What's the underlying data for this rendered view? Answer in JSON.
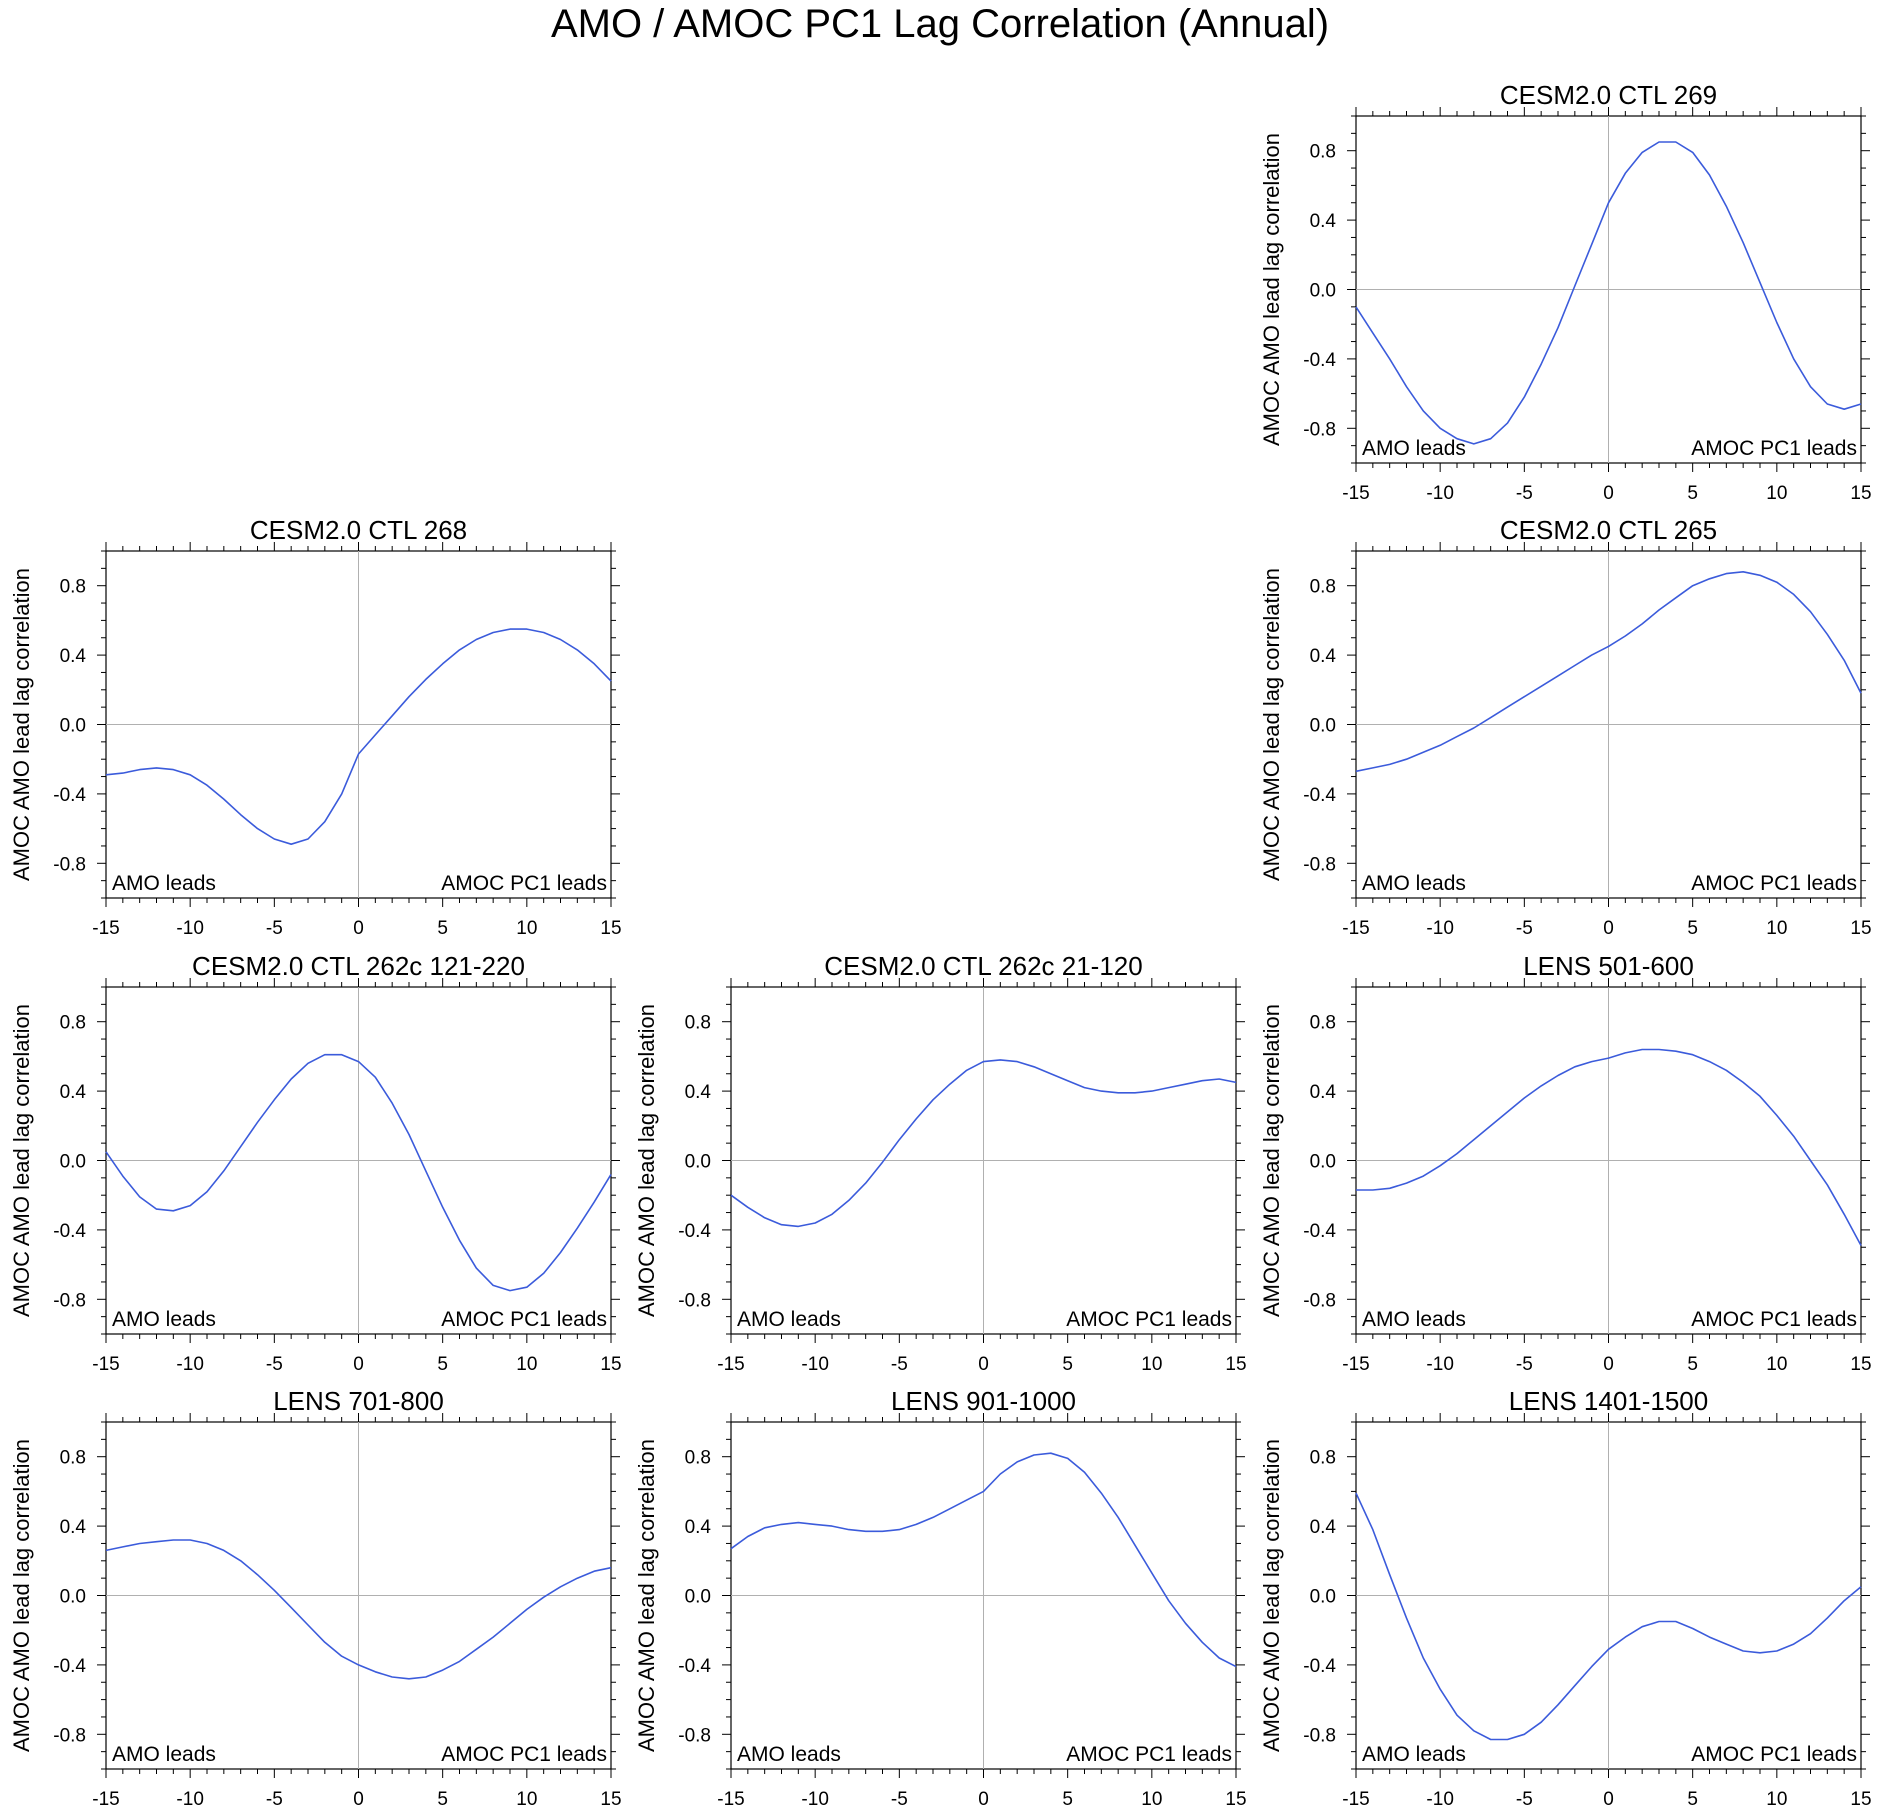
{
  "title": "AMO / AMOC PC1 Lag Correlation (Annual)",
  "colors": {
    "line": "#3b5bdb",
    "zero_line": "#b0b0b0",
    "axis": "#000000"
  },
  "chart_data": [
    {
      "type": "line",
      "title": "CESM2.0 CTL 269",
      "ylabel": "AMOC AMO lead lag correlation",
      "left_annotation": "AMO leads",
      "right_annotation": "AMOC PC1 leads",
      "xlim": [
        -15,
        15
      ],
      "ylim": [
        -1,
        1
      ],
      "xticks": [
        -15,
        -10,
        -5,
        0,
        5,
        10,
        15
      ],
      "xtick_labels": [
        "-15",
        "-10",
        "-5",
        "0",
        "5",
        "10",
        "15"
      ],
      "yticks": [
        -0.8,
        -0.4,
        0.0,
        0.4,
        0.8
      ],
      "ytick_labels": [
        "-0.8",
        "-0.4",
        "0.0",
        "0.4",
        "0.8"
      ],
      "x": [
        -15,
        -14,
        -13,
        -12,
        -11,
        -10,
        -9,
        -8,
        -7,
        -6,
        -5,
        -4,
        -3,
        -2,
        -1,
        0,
        1,
        2,
        3,
        4,
        5,
        6,
        7,
        8,
        9,
        10,
        11,
        12,
        13,
        14,
        15
      ],
      "y": [
        -0.1,
        -0.25,
        -0.4,
        -0.56,
        -0.7,
        -0.8,
        -0.86,
        -0.89,
        -0.86,
        -0.77,
        -0.62,
        -0.43,
        -0.22,
        0.02,
        0.26,
        0.5,
        0.67,
        0.79,
        0.85,
        0.85,
        0.79,
        0.66,
        0.48,
        0.27,
        0.04,
        -0.19,
        -0.4,
        -0.56,
        -0.66,
        -0.69,
        -0.66
      ]
    },
    {
      "type": "line",
      "title": "CESM2.0 CTL 268",
      "ylabel": "AMOC AMO lead lag correlation",
      "left_annotation": "AMO leads",
      "right_annotation": "AMOC PC1 leads",
      "xlim": [
        -15,
        15
      ],
      "ylim": [
        -1,
        1
      ],
      "xticks": [
        -15,
        -10,
        -5,
        0,
        5,
        10,
        15
      ],
      "xtick_labels": [
        "-15",
        "-10",
        "-5",
        "0",
        "5",
        "10",
        "15"
      ],
      "yticks": [
        -0.8,
        -0.4,
        0.0,
        0.4,
        0.8
      ],
      "ytick_labels": [
        "-0.8",
        "-0.4",
        "0.0",
        "0.4",
        "0.8"
      ],
      "x": [
        -15,
        -14,
        -13,
        -12,
        -11,
        -10,
        -9,
        -8,
        -7,
        -6,
        -5,
        -4,
        -3,
        -2,
        -1,
        0,
        1,
        2,
        3,
        4,
        5,
        6,
        7,
        8,
        9,
        10,
        11,
        12,
        13,
        14,
        15
      ],
      "y": [
        -0.29,
        -0.28,
        -0.26,
        -0.25,
        -0.26,
        -0.29,
        -0.35,
        -0.43,
        -0.52,
        -0.6,
        -0.66,
        -0.69,
        -0.66,
        -0.56,
        -0.4,
        -0.17,
        -0.06,
        0.05,
        0.16,
        0.26,
        0.35,
        0.43,
        0.49,
        0.53,
        0.55,
        0.55,
        0.53,
        0.49,
        0.43,
        0.35,
        0.25
      ]
    },
    {
      "type": "line",
      "title": "CESM2.0 CTL 265",
      "ylabel": "AMOC AMO lead lag correlation",
      "left_annotation": "AMO leads",
      "right_annotation": "AMOC PC1 leads",
      "xlim": [
        -15,
        15
      ],
      "ylim": [
        -1,
        1
      ],
      "xticks": [
        -15,
        -10,
        -5,
        0,
        5,
        10,
        15
      ],
      "xtick_labels": [
        "-15",
        "-10",
        "-5",
        "0",
        "5",
        "10",
        "15"
      ],
      "yticks": [
        -0.8,
        -0.4,
        0.0,
        0.4,
        0.8
      ],
      "ytick_labels": [
        "-0.8",
        "-0.4",
        "0.0",
        "0.4",
        "0.8"
      ],
      "x": [
        -15,
        -14,
        -13,
        -12,
        -11,
        -10,
        -9,
        -8,
        -7,
        -6,
        -5,
        -4,
        -3,
        -2,
        -1,
        0,
        1,
        2,
        3,
        4,
        5,
        6,
        7,
        8,
        9,
        10,
        11,
        12,
        13,
        14,
        15
      ],
      "y": [
        -0.27,
        -0.25,
        -0.23,
        -0.2,
        -0.16,
        -0.12,
        -0.07,
        -0.02,
        0.04,
        0.1,
        0.16,
        0.22,
        0.28,
        0.34,
        0.4,
        0.45,
        0.51,
        0.58,
        0.66,
        0.73,
        0.8,
        0.84,
        0.87,
        0.88,
        0.86,
        0.82,
        0.75,
        0.65,
        0.52,
        0.37,
        0.18
      ]
    },
    {
      "type": "line",
      "title": "CESM2.0 CTL 262c 121-220",
      "ylabel": "AMOC AMO lead lag correlation",
      "left_annotation": "AMO leads",
      "right_annotation": "AMOC PC1 leads",
      "xlim": [
        -15,
        15
      ],
      "ylim": [
        -1,
        1
      ],
      "xticks": [
        -15,
        -10,
        -5,
        0,
        5,
        10,
        15
      ],
      "xtick_labels": [
        "-15",
        "-10",
        "-5",
        "0",
        "5",
        "10",
        "15"
      ],
      "yticks": [
        -0.8,
        -0.4,
        0.0,
        0.4,
        0.8
      ],
      "ytick_labels": [
        "-0.8",
        "-0.4",
        "0.0",
        "0.4",
        "0.8"
      ],
      "x": [
        -15,
        -14,
        -13,
        -12,
        -11,
        -10,
        -9,
        -8,
        -7,
        -6,
        -5,
        -4,
        -3,
        -2,
        -1,
        0,
        1,
        2,
        3,
        4,
        5,
        6,
        7,
        8,
        9,
        10,
        11,
        12,
        13,
        14,
        15
      ],
      "y": [
        0.05,
        -0.09,
        -0.21,
        -0.28,
        -0.29,
        -0.26,
        -0.18,
        -0.06,
        0.08,
        0.22,
        0.35,
        0.47,
        0.56,
        0.61,
        0.61,
        0.57,
        0.48,
        0.33,
        0.15,
        -0.06,
        -0.27,
        -0.46,
        -0.62,
        -0.72,
        -0.75,
        -0.73,
        -0.65,
        -0.53,
        -0.39,
        -0.24,
        -0.08
      ]
    },
    {
      "type": "line",
      "title": "CESM2.0 CTL 262c 21-120",
      "ylabel": "AMOC AMO lead lag correlation",
      "left_annotation": "AMO leads",
      "right_annotation": "AMOC PC1 leads",
      "xlim": [
        -15,
        15
      ],
      "ylim": [
        -1,
        1
      ],
      "xticks": [
        -15,
        -10,
        -5,
        0,
        5,
        10,
        15
      ],
      "xtick_labels": [
        "-15",
        "-10",
        "-5",
        "0",
        "5",
        "10",
        "15"
      ],
      "yticks": [
        -0.8,
        -0.4,
        0.0,
        0.4,
        0.8
      ],
      "ytick_labels": [
        "-0.8",
        "-0.4",
        "0.0",
        "0.4",
        "0.8"
      ],
      "x": [
        -15,
        -14,
        -13,
        -12,
        -11,
        -10,
        -9,
        -8,
        -7,
        -6,
        -5,
        -4,
        -3,
        -2,
        -1,
        0,
        1,
        2,
        3,
        4,
        5,
        6,
        7,
        8,
        9,
        10,
        11,
        12,
        13,
        14,
        15
      ],
      "y": [
        -0.2,
        -0.27,
        -0.33,
        -0.37,
        -0.38,
        -0.36,
        -0.31,
        -0.23,
        -0.13,
        -0.01,
        0.12,
        0.24,
        0.35,
        0.44,
        0.52,
        0.57,
        0.58,
        0.57,
        0.54,
        0.5,
        0.46,
        0.42,
        0.4,
        0.39,
        0.39,
        0.4,
        0.42,
        0.44,
        0.46,
        0.47,
        0.45
      ]
    },
    {
      "type": "line",
      "title": "LENS 501-600",
      "ylabel": "AMOC AMO lead lag correlation",
      "left_annotation": "AMO leads",
      "right_annotation": "AMOC PC1 leads",
      "xlim": [
        -15,
        15
      ],
      "ylim": [
        -1,
        1
      ],
      "xticks": [
        -15,
        -10,
        -5,
        0,
        5,
        10,
        15
      ],
      "xtick_labels": [
        "-15",
        "-10",
        "-5",
        "0",
        "5",
        "10",
        "15"
      ],
      "yticks": [
        -0.8,
        -0.4,
        0.0,
        0.4,
        0.8
      ],
      "ytick_labels": [
        "-0.8",
        "-0.4",
        "0.0",
        "0.4",
        "0.8"
      ],
      "x": [
        -15,
        -14,
        -13,
        -12,
        -11,
        -10,
        -9,
        -8,
        -7,
        -6,
        -5,
        -4,
        -3,
        -2,
        -1,
        0,
        1,
        2,
        3,
        4,
        5,
        6,
        7,
        8,
        9,
        10,
        11,
        12,
        13,
        14,
        15
      ],
      "y": [
        -0.17,
        -0.17,
        -0.16,
        -0.13,
        -0.09,
        -0.03,
        0.04,
        0.12,
        0.2,
        0.28,
        0.36,
        0.43,
        0.49,
        0.54,
        0.57,
        0.59,
        0.62,
        0.64,
        0.64,
        0.63,
        0.61,
        0.57,
        0.52,
        0.45,
        0.37,
        0.26,
        0.14,
        0.0,
        -0.14,
        -0.31,
        -0.49
      ]
    },
    {
      "type": "line",
      "title": "LENS 701-800",
      "ylabel": "AMOC AMO lead lag correlation",
      "left_annotation": "AMO leads",
      "right_annotation": "AMOC PC1 leads",
      "xlim": [
        -15,
        15
      ],
      "ylim": [
        -1,
        1
      ],
      "xticks": [
        -15,
        -10,
        -5,
        0,
        5,
        10,
        15
      ],
      "xtick_labels": [
        "-15",
        "-10",
        "-5",
        "0",
        "5",
        "10",
        "15"
      ],
      "yticks": [
        -0.8,
        -0.4,
        0.0,
        0.4,
        0.8
      ],
      "ytick_labels": [
        "-0.8",
        "-0.4",
        "0.0",
        "0.4",
        "0.8"
      ],
      "x": [
        -15,
        -14,
        -13,
        -12,
        -11,
        -10,
        -9,
        -8,
        -7,
        -6,
        -5,
        -4,
        -3,
        -2,
        -1,
        0,
        1,
        2,
        3,
        4,
        5,
        6,
        7,
        8,
        9,
        10,
        11,
        12,
        13,
        14,
        15
      ],
      "y": [
        0.26,
        0.28,
        0.3,
        0.31,
        0.32,
        0.32,
        0.3,
        0.26,
        0.2,
        0.12,
        0.03,
        -0.07,
        -0.17,
        -0.27,
        -0.35,
        -0.4,
        -0.44,
        -0.47,
        -0.48,
        -0.47,
        -0.43,
        -0.38,
        -0.31,
        -0.24,
        -0.16,
        -0.08,
        -0.01,
        0.05,
        0.1,
        0.14,
        0.16
      ]
    },
    {
      "type": "line",
      "title": "LENS 901-1000",
      "ylabel": "AMOC AMO lead lag correlation",
      "left_annotation": "AMO leads",
      "right_annotation": "AMOC PC1 leads",
      "xlim": [
        -15,
        15
      ],
      "ylim": [
        -1,
        1
      ],
      "xticks": [
        -15,
        -10,
        -5,
        0,
        5,
        10,
        15
      ],
      "xtick_labels": [
        "-15",
        "-10",
        "-5",
        "0",
        "5",
        "10",
        "15"
      ],
      "yticks": [
        -0.8,
        -0.4,
        0.0,
        0.4,
        0.8
      ],
      "ytick_labels": [
        "-0.8",
        "-0.4",
        "0.0",
        "0.4",
        "0.8"
      ],
      "x": [
        -15,
        -14,
        -13,
        -12,
        -11,
        -10,
        -9,
        -8,
        -7,
        -6,
        -5,
        -4,
        -3,
        -2,
        -1,
        0,
        1,
        2,
        3,
        4,
        5,
        6,
        7,
        8,
        9,
        10,
        11,
        12,
        13,
        14,
        15
      ],
      "y": [
        0.27,
        0.34,
        0.39,
        0.41,
        0.42,
        0.41,
        0.4,
        0.38,
        0.37,
        0.37,
        0.38,
        0.41,
        0.45,
        0.5,
        0.55,
        0.6,
        0.7,
        0.77,
        0.81,
        0.82,
        0.79,
        0.71,
        0.59,
        0.45,
        0.29,
        0.13,
        -0.03,
        -0.16,
        -0.27,
        -0.36,
        -0.41
      ]
    },
    {
      "type": "line",
      "title": "LENS 1401-1500",
      "ylabel": "AMOC AMO lead lag correlation",
      "left_annotation": "AMO leads",
      "right_annotation": "AMOC PC1 leads",
      "xlim": [
        -15,
        15
      ],
      "ylim": [
        -1,
        1
      ],
      "xticks": [
        -15,
        -10,
        -5,
        0,
        5,
        10,
        15
      ],
      "xtick_labels": [
        "-15",
        "-10",
        "-5",
        "0",
        "5",
        "10",
        "15"
      ],
      "yticks": [
        -0.8,
        -0.4,
        0.0,
        0.4,
        0.8
      ],
      "ytick_labels": [
        "-0.8",
        "-0.4",
        "0.0",
        "0.4",
        "0.8"
      ],
      "x": [
        -15,
        -14,
        -13,
        -12,
        -11,
        -10,
        -9,
        -8,
        -7,
        -6,
        -5,
        -4,
        -3,
        -2,
        -1,
        0,
        1,
        2,
        3,
        4,
        5,
        6,
        7,
        8,
        9,
        10,
        11,
        12,
        13,
        14,
        15
      ],
      "y": [
        0.59,
        0.38,
        0.12,
        -0.13,
        -0.36,
        -0.54,
        -0.69,
        -0.78,
        -0.83,
        -0.83,
        -0.8,
        -0.73,
        -0.63,
        -0.52,
        -0.41,
        -0.31,
        -0.24,
        -0.18,
        -0.15,
        -0.15,
        -0.19,
        -0.24,
        -0.28,
        -0.32,
        -0.33,
        -0.32,
        -0.28,
        -0.22,
        -0.13,
        -0.03,
        0.05
      ]
    }
  ]
}
